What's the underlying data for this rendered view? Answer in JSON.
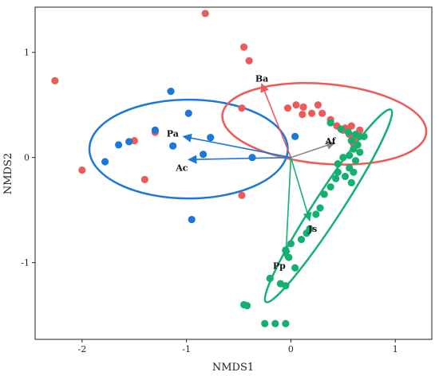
{
  "chart_data": {
    "type": "scatter",
    "title": "",
    "xlabel": "NMDS1",
    "ylabel": "NMDS2",
    "xlim": [
      -2.45,
      1.35
    ],
    "ylim": [
      -1.73,
      1.43
    ],
    "x_ticks": [
      -2,
      -1,
      0,
      1
    ],
    "y_ticks": [
      -1,
      0,
      1
    ],
    "x_tick_labels": [
      "-2",
      "-1",
      "0",
      "1"
    ],
    "y_tick_labels": [
      "-1",
      "0",
      "1"
    ],
    "grid": false,
    "legend": "none",
    "series": [
      {
        "color": "#EE5A5A",
        "points": [
          [
            -2.26,
            0.73
          ],
          [
            -2.0,
            -0.12
          ],
          [
            -1.5,
            0.16
          ],
          [
            -1.4,
            -0.21
          ],
          [
            -1.3,
            0.24
          ],
          [
            -0.82,
            1.37
          ],
          [
            -0.45,
            1.05
          ],
          [
            -0.4,
            0.92
          ],
          [
            -0.47,
            0.47
          ],
          [
            -0.47,
            -0.36
          ],
          [
            -0.03,
            0.47
          ],
          [
            0.05,
            0.5
          ],
          [
            0.12,
            0.48
          ],
          [
            0.2,
            0.42
          ],
          [
            0.11,
            0.41
          ],
          [
            0.26,
            0.5
          ],
          [
            0.3,
            0.42
          ],
          [
            0.38,
            0.36
          ],
          [
            0.44,
            0.3
          ],
          [
            0.52,
            0.28
          ],
          [
            0.56,
            0.22
          ],
          [
            0.6,
            0.18
          ],
          [
            0.65,
            0.2
          ],
          [
            0.7,
            0.2
          ],
          [
            0.66,
            0.26
          ],
          [
            0.6,
            0.13
          ],
          [
            0.5,
            0.26
          ],
          [
            0.58,
            0.3
          ]
        ]
      },
      {
        "color": "#1B78D8",
        "points": [
          [
            -1.78,
            -0.04
          ],
          [
            -1.65,
            0.12
          ],
          [
            -1.55,
            0.15
          ],
          [
            -1.3,
            0.26
          ],
          [
            -1.15,
            0.63
          ],
          [
            -1.13,
            0.11
          ],
          [
            -0.98,
            0.42
          ],
          [
            -0.77,
            0.19
          ],
          [
            -0.84,
            0.03
          ],
          [
            -0.95,
            -0.59
          ],
          [
            -0.37,
            0.0
          ],
          [
            0.04,
            0.2
          ]
        ]
      },
      {
        "color": "#14B070",
        "points": [
          [
            0.38,
            0.33
          ],
          [
            0.48,
            0.27
          ],
          [
            0.55,
            0.24
          ],
          [
            0.62,
            0.22
          ],
          [
            0.66,
            0.2
          ],
          [
            0.7,
            0.2
          ],
          [
            0.58,
            0.16
          ],
          [
            0.64,
            0.12
          ],
          [
            0.6,
            0.08
          ],
          [
            0.66,
            0.05
          ],
          [
            0.56,
            0.02
          ],
          [
            0.62,
            -0.03
          ],
          [
            0.5,
            0.0
          ],
          [
            0.45,
            -0.06
          ],
          [
            0.56,
            -0.1
          ],
          [
            0.6,
            -0.14
          ],
          [
            0.52,
            -0.18
          ],
          [
            0.58,
            -0.24
          ],
          [
            0.45,
            -0.14
          ],
          [
            0.43,
            -0.2
          ],
          [
            0.38,
            -0.28
          ],
          [
            0.32,
            -0.35
          ],
          [
            0.28,
            -0.48
          ],
          [
            0.24,
            -0.54
          ],
          [
            0.18,
            -0.68
          ],
          [
            0.15,
            -0.72
          ],
          [
            0.1,
            -0.78
          ],
          [
            0.0,
            -0.82
          ],
          [
            -0.05,
            -0.88
          ],
          [
            -0.02,
            -0.95
          ],
          [
            0.04,
            -1.05
          ],
          [
            -0.2,
            -1.15
          ],
          [
            -0.1,
            -1.2
          ],
          [
            -0.05,
            -1.22
          ],
          [
            -0.45,
            -1.4
          ],
          [
            -0.42,
            -1.41
          ],
          [
            -0.25,
            -1.58
          ],
          [
            -0.15,
            -1.58
          ],
          [
            -0.05,
            -1.58
          ]
        ]
      }
    ],
    "ellipses": [
      {
        "color": "#1B78D8",
        "cx": -0.98,
        "cy": 0.08,
        "rx": 0.95,
        "ry": 0.47,
        "angle_deg": 0
      },
      {
        "color": "#EE5A5A",
        "cx": 0.32,
        "cy": 0.32,
        "rx": 0.98,
        "ry": 0.38,
        "angle_deg": -5
      },
      {
        "color": "#14B070",
        "cx": 0.36,
        "cy": -0.46,
        "rx": 1.1,
        "ry": 0.13,
        "angle_deg": 57
      }
    ],
    "vectors": [
      {
        "label": "Ba",
        "color": "#EE5A5A",
        "end": [
          -0.28,
          0.7
        ]
      },
      {
        "label": "Af",
        "color": "#888888",
        "end": [
          0.42,
          0.14
        ]
      },
      {
        "label": "Pa",
        "color": "#1B78D8",
        "end": [
          -1.03,
          0.2
        ]
      },
      {
        "label": "Ac",
        "color": "#1B78D8",
        "end": [
          -0.98,
          -0.02
        ]
      },
      {
        "label": "Js",
        "color": "#14B070",
        "end": [
          0.18,
          -0.6
        ]
      },
      {
        "label": "Pp",
        "color": "#14B070",
        "end": [
          -0.05,
          -0.96
        ]
      }
    ],
    "vector_origin": [
      0,
      0
    ]
  }
}
